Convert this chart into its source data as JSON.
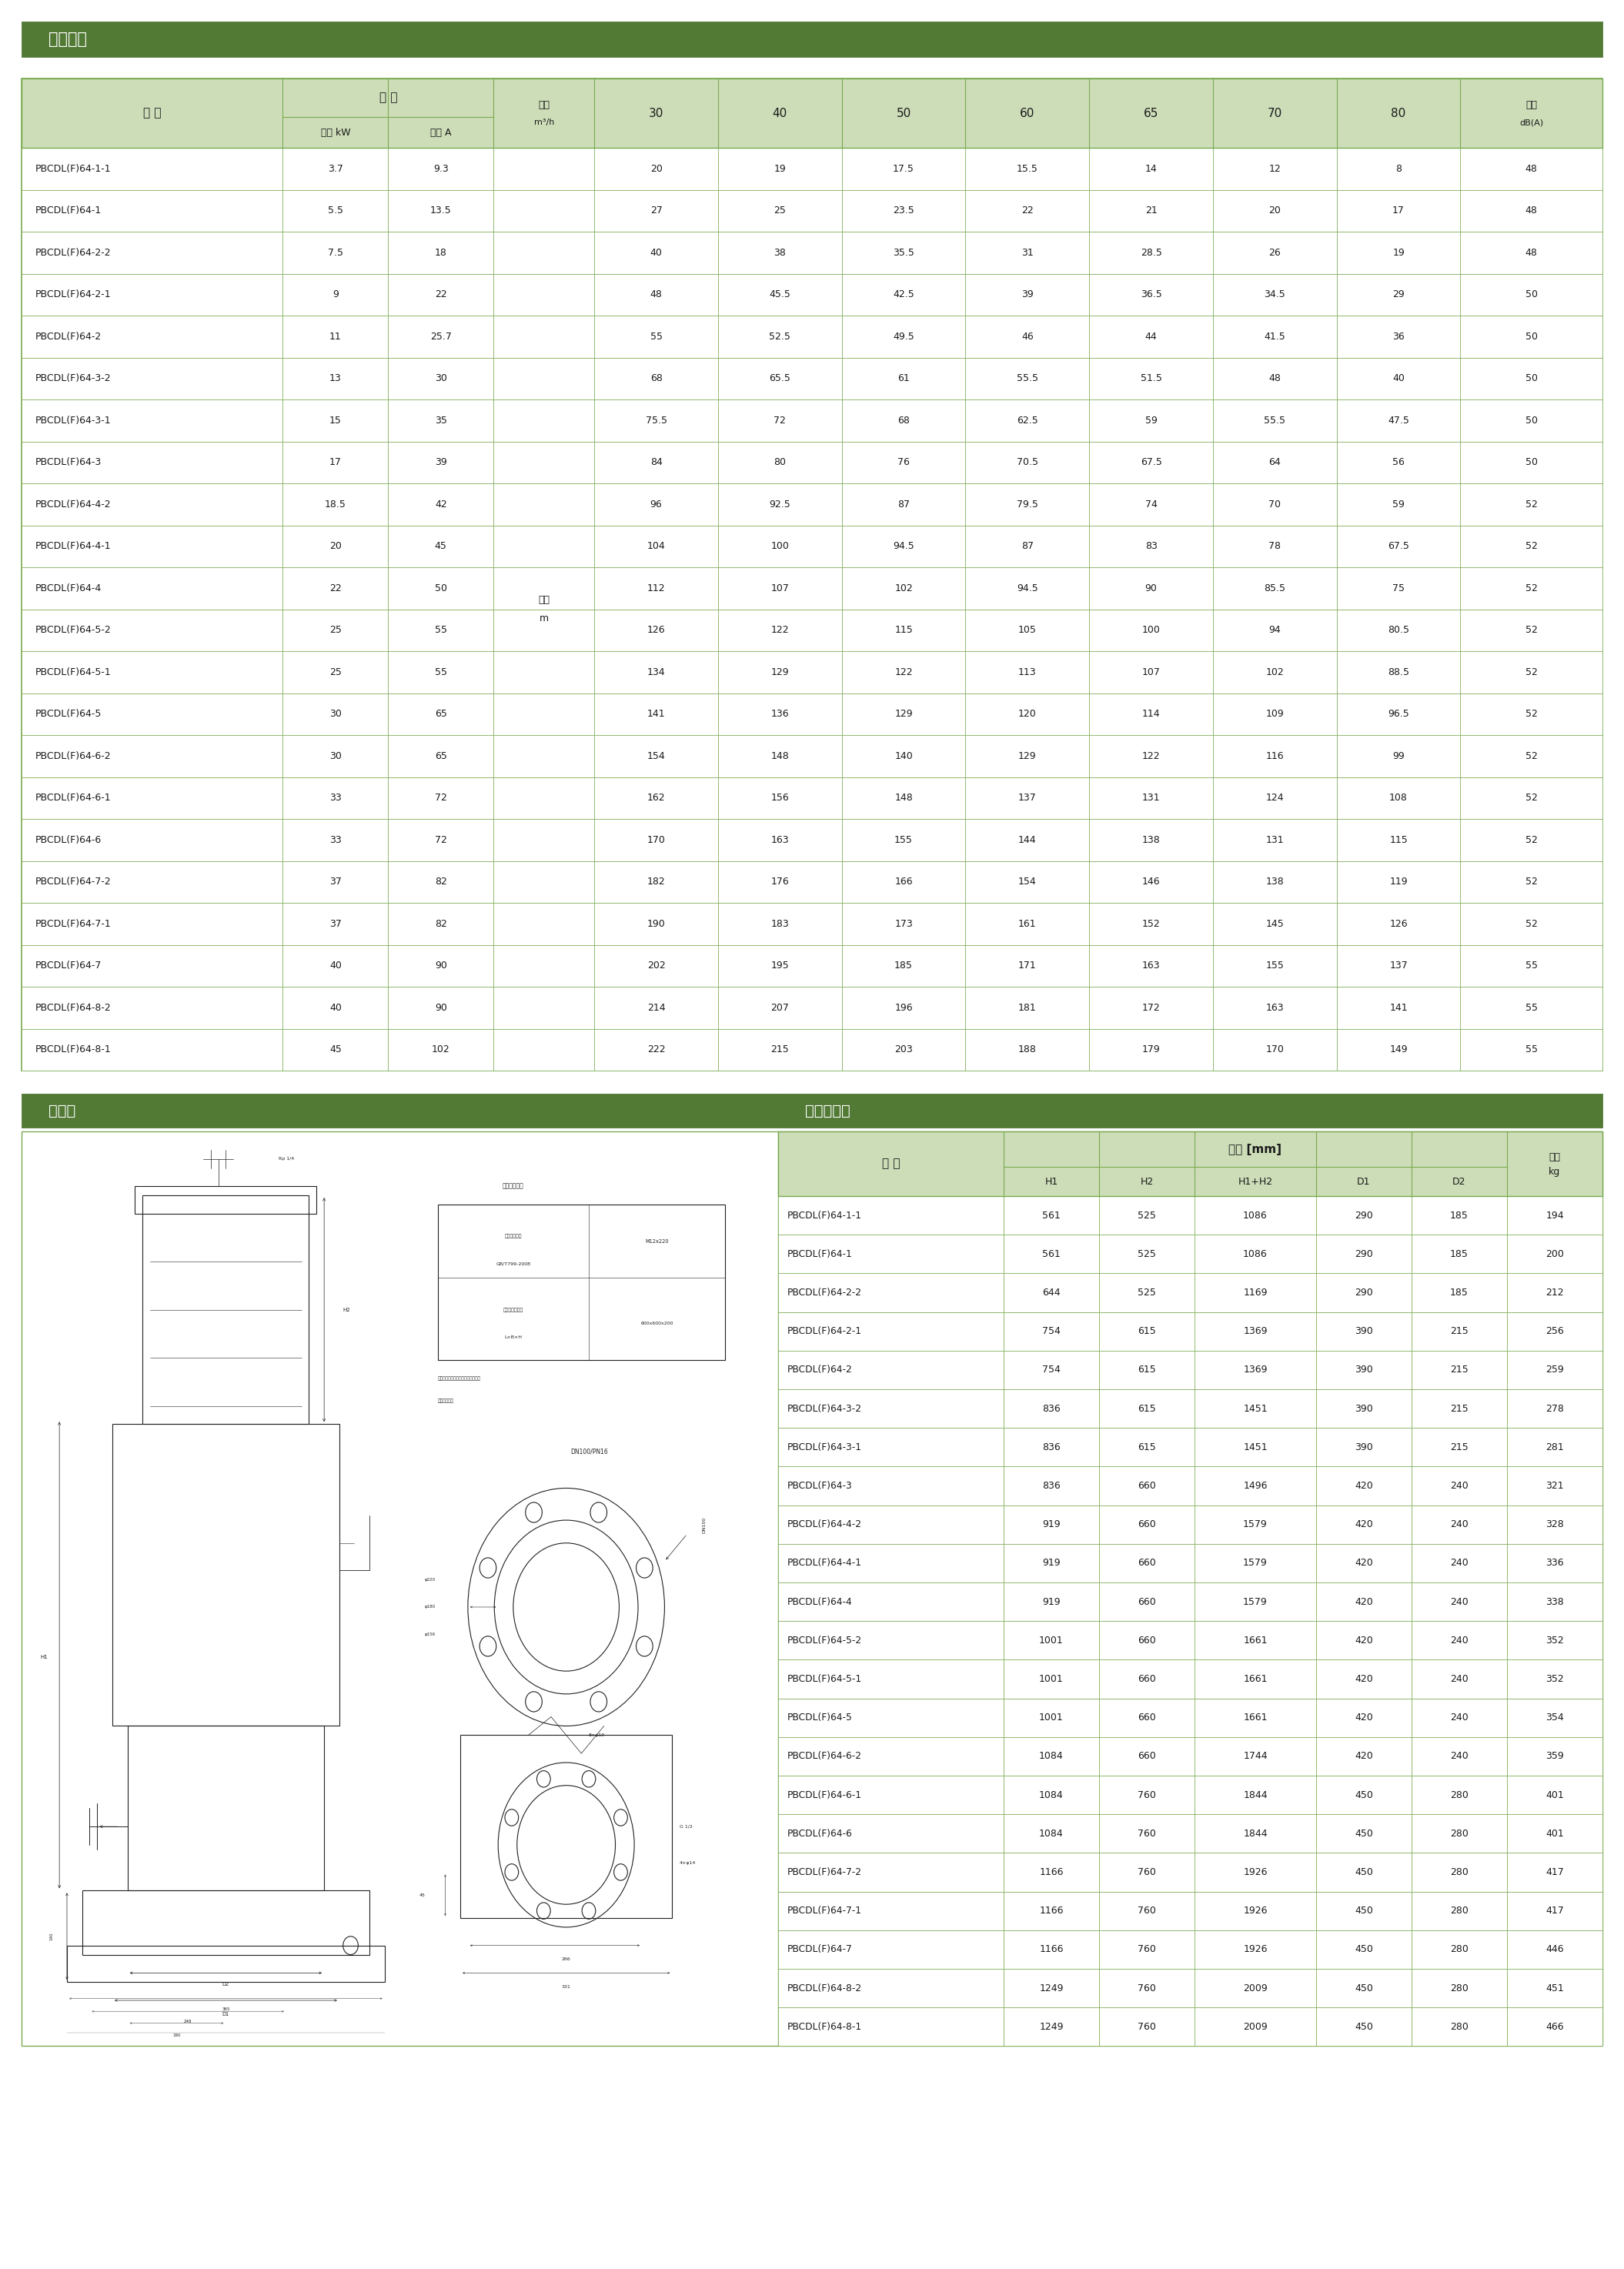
{
  "section1_title": "性能参数",
  "section2_title": "外形图",
  "section3_title": "尺寸和重量",
  "header_bg": "#527a35",
  "table_header_bg": "#cdddb8",
  "table_border": "#7aaa50",
  "text_color": "#1a1a1a",
  "perf_data": [
    [
      "PBCDL(F)64-1-1",
      "3.7",
      "9.3",
      "20",
      "19",
      "17.5",
      "15.5",
      "14",
      "12",
      "8",
      "48"
    ],
    [
      "PBCDL(F)64-1",
      "5.5",
      "13.5",
      "27",
      "25",
      "23.5",
      "22",
      "21",
      "20",
      "17",
      "48"
    ],
    [
      "PBCDL(F)64-2-2",
      "7.5",
      "18",
      "40",
      "38",
      "35.5",
      "31",
      "28.5",
      "26",
      "19",
      "48"
    ],
    [
      "PBCDL(F)64-2-1",
      "9",
      "22",
      "48",
      "45.5",
      "42.5",
      "39",
      "36.5",
      "34.5",
      "29",
      "50"
    ],
    [
      "PBCDL(F)64-2",
      "11",
      "25.7",
      "55",
      "52.5",
      "49.5",
      "46",
      "44",
      "41.5",
      "36",
      "50"
    ],
    [
      "PBCDL(F)64-3-2",
      "13",
      "30",
      "68",
      "65.5",
      "61",
      "55.5",
      "51.5",
      "48",
      "40",
      "50"
    ],
    [
      "PBCDL(F)64-3-1",
      "15",
      "35",
      "75.5",
      "72",
      "68",
      "62.5",
      "59",
      "55.5",
      "47.5",
      "50"
    ],
    [
      "PBCDL(F)64-3",
      "17",
      "39",
      "84",
      "80",
      "76",
      "70.5",
      "67.5",
      "64",
      "56",
      "50"
    ],
    [
      "PBCDL(F)64-4-2",
      "18.5",
      "42",
      "96",
      "92.5",
      "87",
      "79.5",
      "74",
      "70",
      "59",
      "52"
    ],
    [
      "PBCDL(F)64-4-1",
      "20",
      "45",
      "104",
      "100",
      "94.5",
      "87",
      "83",
      "78",
      "67.5",
      "52"
    ],
    [
      "PBCDL(F)64-4",
      "22",
      "50",
      "112",
      "107",
      "102",
      "94.5",
      "90",
      "85.5",
      "75",
      "52"
    ],
    [
      "PBCDL(F)64-5-2",
      "25",
      "55",
      "126",
      "122",
      "115",
      "105",
      "100",
      "94",
      "80.5",
      "52"
    ],
    [
      "PBCDL(F)64-5-1",
      "25",
      "55",
      "134",
      "129",
      "122",
      "113",
      "107",
      "102",
      "88.5",
      "52"
    ],
    [
      "PBCDL(F)64-5",
      "30",
      "65",
      "141",
      "136",
      "129",
      "120",
      "114",
      "109",
      "96.5",
      "52"
    ],
    [
      "PBCDL(F)64-6-2",
      "30",
      "65",
      "154",
      "148",
      "140",
      "129",
      "122",
      "116",
      "99",
      "52"
    ],
    [
      "PBCDL(F)64-6-1",
      "33",
      "72",
      "162",
      "156",
      "148",
      "137",
      "131",
      "124",
      "108",
      "52"
    ],
    [
      "PBCDL(F)64-6",
      "33",
      "72",
      "170",
      "163",
      "155",
      "144",
      "138",
      "131",
      "115",
      "52"
    ],
    [
      "PBCDL(F)64-7-2",
      "37",
      "82",
      "182",
      "176",
      "166",
      "154",
      "146",
      "138",
      "119",
      "52"
    ],
    [
      "PBCDL(F)64-7-1",
      "37",
      "82",
      "190",
      "183",
      "173",
      "161",
      "152",
      "145",
      "126",
      "52"
    ],
    [
      "PBCDL(F)64-7",
      "40",
      "90",
      "202",
      "195",
      "185",
      "171",
      "163",
      "155",
      "137",
      "55"
    ],
    [
      "PBCDL(F)64-8-2",
      "40",
      "90",
      "214",
      "207",
      "196",
      "181",
      "172",
      "163",
      "141",
      "55"
    ],
    [
      "PBCDL(F)64-8-1",
      "45",
      "102",
      "222",
      "215",
      "203",
      "188",
      "179",
      "170",
      "149",
      "55"
    ]
  ],
  "dim_data": [
    [
      "PBCDL(F)64-1-1",
      "561",
      "525",
      "1086",
      "290",
      "185",
      "194"
    ],
    [
      "PBCDL(F)64-1",
      "561",
      "525",
      "1086",
      "290",
      "185",
      "200"
    ],
    [
      "PBCDL(F)64-2-2",
      "644",
      "525",
      "1169",
      "290",
      "185",
      "212"
    ],
    [
      "PBCDL(F)64-2-1",
      "754",
      "615",
      "1369",
      "390",
      "215",
      "256"
    ],
    [
      "PBCDL(F)64-2",
      "754",
      "615",
      "1369",
      "390",
      "215",
      "259"
    ],
    [
      "PBCDL(F)64-3-2",
      "836",
      "615",
      "1451",
      "390",
      "215",
      "278"
    ],
    [
      "PBCDL(F)64-3-1",
      "836",
      "615",
      "1451",
      "390",
      "215",
      "281"
    ],
    [
      "PBCDL(F)64-3",
      "836",
      "660",
      "1496",
      "420",
      "240",
      "321"
    ],
    [
      "PBCDL(F)64-4-2",
      "919",
      "660",
      "1579",
      "420",
      "240",
      "328"
    ],
    [
      "PBCDL(F)64-4-1",
      "919",
      "660",
      "1579",
      "420",
      "240",
      "336"
    ],
    [
      "PBCDL(F)64-4",
      "919",
      "660",
      "1579",
      "420",
      "240",
      "338"
    ],
    [
      "PBCDL(F)64-5-2",
      "1001",
      "660",
      "1661",
      "420",
      "240",
      "352"
    ],
    [
      "PBCDL(F)64-5-1",
      "1001",
      "660",
      "1661",
      "420",
      "240",
      "352"
    ],
    [
      "PBCDL(F)64-5",
      "1001",
      "660",
      "1661",
      "420",
      "240",
      "354"
    ],
    [
      "PBCDL(F)64-6-2",
      "1084",
      "660",
      "1744",
      "420",
      "240",
      "359"
    ],
    [
      "PBCDL(F)64-6-1",
      "1084",
      "760",
      "1844",
      "450",
      "280",
      "401"
    ],
    [
      "PBCDL(F)64-6",
      "1084",
      "760",
      "1844",
      "450",
      "280",
      "401"
    ],
    [
      "PBCDL(F)64-7-2",
      "1166",
      "760",
      "1926",
      "450",
      "280",
      "417"
    ],
    [
      "PBCDL(F)64-7-1",
      "1166",
      "760",
      "1926",
      "450",
      "280",
      "417"
    ],
    [
      "PBCDL(F)64-7",
      "1166",
      "760",
      "1926",
      "450",
      "280",
      "446"
    ],
    [
      "PBCDL(F)64-8-2",
      "1249",
      "760",
      "2009",
      "450",
      "280",
      "451"
    ],
    [
      "PBCDL(F)64-8-1",
      "1249",
      "760",
      "2009",
      "450",
      "280",
      "466"
    ]
  ]
}
